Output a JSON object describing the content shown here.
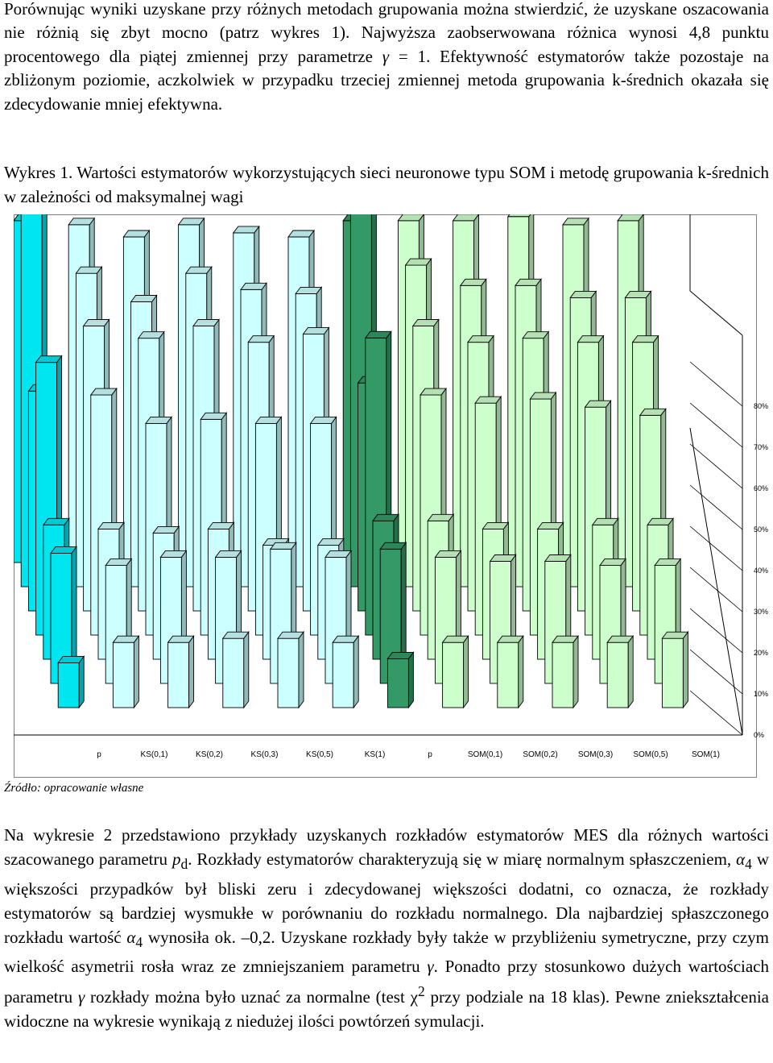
{
  "intro": {
    "text_before_gamma": "Porównując wyniki uzyskane przy różnych metodach grupowania można stwierdzić, że uzyskane oszacowania nie różnią się zbyt mocno (patrz wykres 1). Najwyższa zaobserwowana różnica wynosi 4,8 punktu procentowego dla piątej zmiennej przy parametrze ",
    "gamma": "γ",
    "text_after_gamma": " = 1. Efektywność estymatorów także pozostaje na zbliżonym poziomie, aczkolwiek w przypadku trzeciej zmiennej metoda grupowania k-średnich okazała się zdecydowanie mniej efektywna."
  },
  "caption": "Wykres 1. Wartości estymatorów wykorzystujących sieci neuronowe typu SOM i metodę grupowania k-średnich w zależności od maksymalnej wagi",
  "source": "Źródło: opracowanie własne",
  "chart_data": {
    "type": "bar",
    "variant": "3d-column",
    "categories": [
      "p",
      "KS(0,1)",
      "KS(0,2)",
      "KS(0,3)",
      "KS(0,5)",
      "KS(1)",
      "p",
      "SOM(0,1)",
      "SOM(0,2)",
      "SOM(0,3)",
      "SOM(0,5)",
      "SOM(1)"
    ],
    "depth_rows": 7,
    "values": [
      [
        84,
        83,
        80,
        83,
        81,
        80,
        84,
        84,
        84,
        85,
        83,
        84
      ],
      [
        94,
        77,
        70,
        77,
        73,
        72,
        95,
        79,
        74,
        74,
        71,
        71
      ],
      [
        54,
        70,
        67,
        70,
        66,
        68,
        56,
        70,
        66,
        67,
        66,
        66
      ],
      [
        67,
        59,
        52,
        53,
        52,
        52,
        73,
        59,
        57,
        58,
        56,
        54
      ],
      [
        33,
        32,
        31,
        32,
        28,
        28,
        34,
        34,
        32,
        32,
        33,
        33
      ],
      [
        32,
        29,
        31,
        31,
        33,
        31,
        33,
        31,
        30,
        30,
        29,
        29
      ],
      [
        11,
        16,
        16,
        17,
        17,
        16,
        12,
        16,
        16,
        16,
        16,
        17
      ]
    ],
    "yticks": [
      "0%",
      "10%",
      "20%",
      "30%",
      "40%",
      "50%",
      "60%",
      "70%",
      "80%"
    ],
    "ylim": [
      0,
      90
    ],
    "legend": "none",
    "grid": true,
    "colors": {
      "ks_p": "#00E6F0",
      "ks": "#CCFFFF",
      "som_p": "#339966",
      "som": "#CCFFCC",
      "outline": "#000000"
    }
  },
  "body": {
    "s1": "Na wykresie 2 przedstawiono przykłady uzyskanych rozkładów estymatorów MES dla różnych wartości szacowanego parametru ",
    "pd_p": "p",
    "pd_d": "d",
    "s2": ". Rozkłady estymatorów charakteryzują się w miarę normalnym spłaszczeniem, ",
    "alpha": "α",
    "alpha_sub": "4",
    "s3": " w większości przypadków był bliski zeru i zdecydowanej większości dodatni, co oznacza, że rozkłady estymatorów są bardziej wysmukłe w porównaniu do rozkładu normalnego. Dla najbardziej spłaszczonego rozkładu wartość ",
    "alpha2": "α",
    "alpha2_sub": "4",
    "s4": " wynosiła ok. –0,2. Uzyskane rozkłady były także w przybliżeniu symetryczne, przy czym wielkość asymetrii rosła wraz ze zmniejszaniem parametru ",
    "gamma1": "γ",
    "s5": ". Ponadto przy stosunkowo dużych wartościach parametru ",
    "gamma2": "γ",
    "s6": " rozkłady można było uznać za normalne (test ",
    "chi": "χ",
    "chi_sup": "2",
    "s7": " przy podziale na 18 klas). Pewne zniekształcenia widoczne na wykresie wynikają z niedużej ilości powtórzeń symulacji."
  }
}
